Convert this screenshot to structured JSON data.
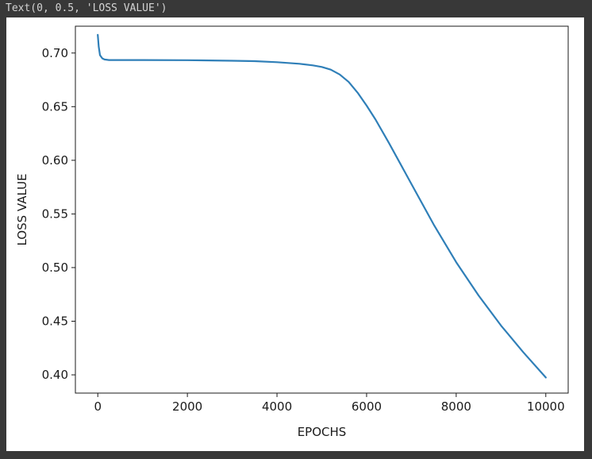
{
  "output": {
    "text": "Text(0, 0.5, 'LOSS VALUE')"
  },
  "chart_data": {
    "type": "line",
    "title": "",
    "xlabel": "EPOCHS",
    "ylabel": "LOSS VALUE",
    "xlim": [
      -500,
      10500
    ],
    "ylim": [
      0.383,
      0.725
    ],
    "xticks": [
      0,
      2000,
      4000,
      6000,
      8000,
      10000
    ],
    "xtick_labels": [
      "0",
      "2000",
      "4000",
      "6000",
      "8000",
      "10000"
    ],
    "yticks": [
      0.4,
      0.45,
      0.5,
      0.55,
      0.6,
      0.65,
      0.7
    ],
    "ytick_labels": [
      "0.40",
      "0.45",
      "0.50",
      "0.55",
      "0.60",
      "0.65",
      "0.70"
    ],
    "grid": false,
    "series": [
      {
        "color": "#2f7fb8",
        "x": [
          0,
          20,
          50,
          100,
          150,
          250,
          500,
          1000,
          2000,
          3000,
          3500,
          4000,
          4500,
          4800,
          5000,
          5200,
          5400,
          5600,
          5800,
          6000,
          6200,
          6500,
          7000,
          7500,
          8000,
          8500,
          9000,
          9500,
          10000
        ],
        "y": [
          0.717,
          0.706,
          0.698,
          0.695,
          0.694,
          0.6935,
          0.6935,
          0.6935,
          0.6933,
          0.6928,
          0.6924,
          0.6915,
          0.69,
          0.6885,
          0.687,
          0.6845,
          0.68,
          0.673,
          0.663,
          0.651,
          0.638,
          0.616,
          0.578,
          0.54,
          0.505,
          0.474,
          0.446,
          0.421,
          0.3975
        ]
      }
    ]
  }
}
